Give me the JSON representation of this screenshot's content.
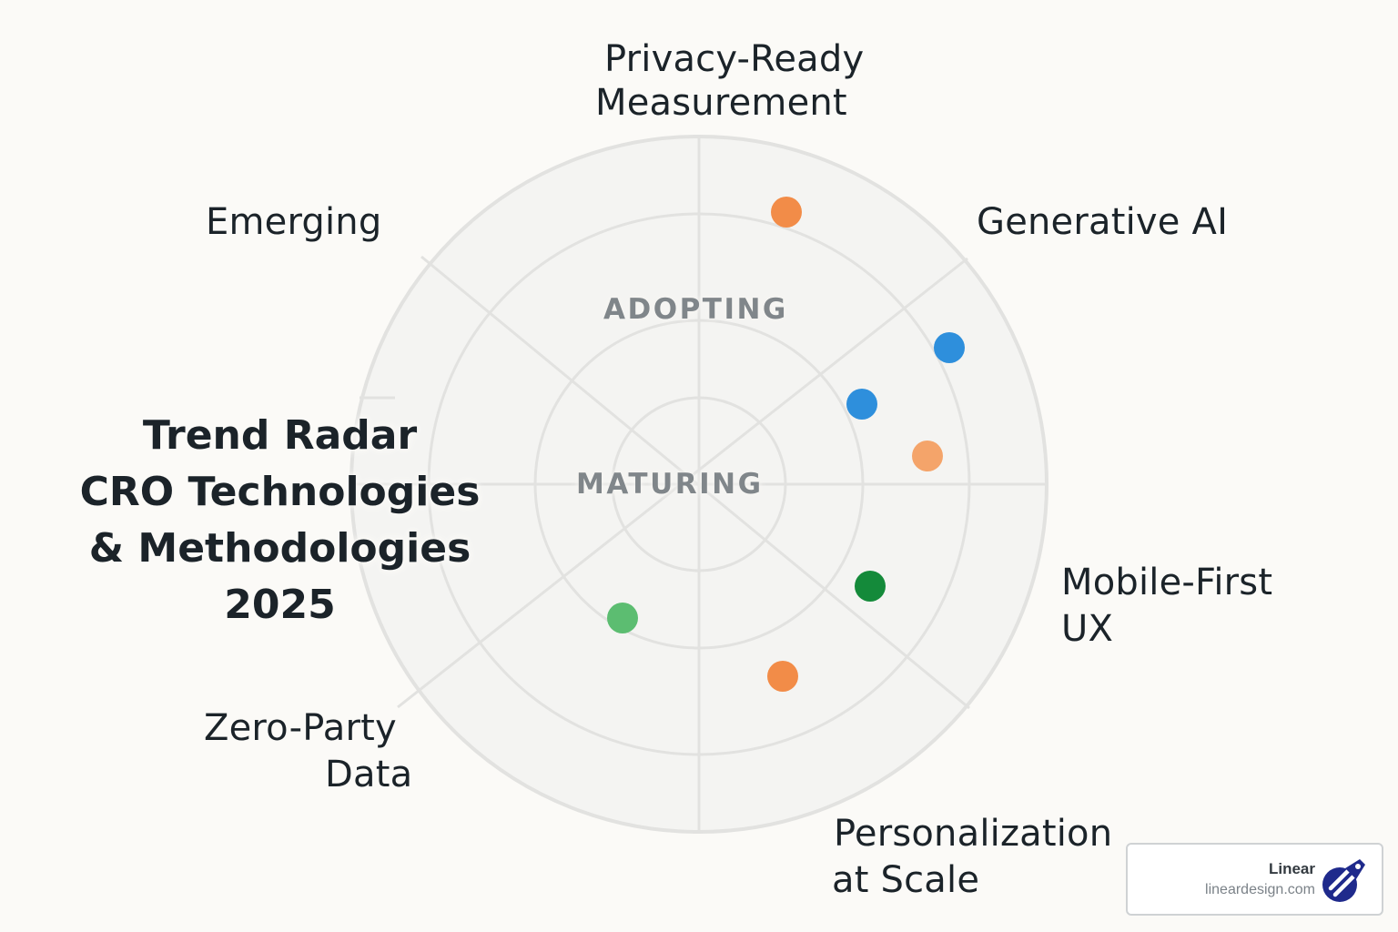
{
  "title": {
    "line1": "Trend Radar",
    "line2": "CRO Technologies",
    "line3": "& Methodologies",
    "line4": "2025"
  },
  "rings": {
    "adopting": "ADOPTING",
    "maturing": "MATURING"
  },
  "sectors": {
    "privacy": [
      "Privacy-Ready",
      "Measurement"
    ],
    "generative": "Generative AI",
    "emerging": "Emerging",
    "mobile": [
      "Mobile-First",
      "UX"
    ],
    "zero_party": [
      "Zero-Party",
      "Data"
    ],
    "personalization": [
      "Personalization",
      "at Scale"
    ]
  },
  "colors": {
    "orange": "#f28c48",
    "light_orange": "#f4a46a",
    "blue": "#2e8fdc",
    "dark_green": "#148a3a",
    "light_green": "#5cbd71",
    "ring_line": "#e2e2e0",
    "disk": "#f4f4f2"
  },
  "blips": [
    {
      "sector": "Privacy-Ready Measurement",
      "color": "orange"
    },
    {
      "sector": "Generative AI",
      "color": "blue"
    },
    {
      "sector": "Generative AI",
      "color": "blue"
    },
    {
      "sector": "Generative AI",
      "color": "light_orange"
    },
    {
      "sector": "Mobile-First UX",
      "color": "dark_green"
    },
    {
      "sector": "Personalization at Scale",
      "color": "orange"
    },
    {
      "sector": "Zero-Party Data",
      "color": "light_green"
    }
  ],
  "badge": {
    "name": "Linear",
    "domain": "lineardesign.com",
    "logo_icon": "rocket-logo-icon"
  }
}
